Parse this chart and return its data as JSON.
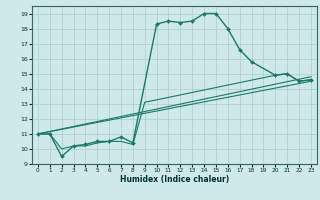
{
  "xlabel": "Humidex (Indice chaleur)",
  "bg_color": "#cfe8e8",
  "grid_color": "#aacccc",
  "line_color": "#1a7a6a",
  "xlim": [
    -0.5,
    23.5
  ],
  "ylim": [
    9,
    19.5
  ],
  "xticks": [
    0,
    1,
    2,
    3,
    4,
    5,
    6,
    7,
    8,
    9,
    10,
    11,
    12,
    13,
    14,
    15,
    16,
    17,
    18,
    19,
    20,
    21,
    22,
    23
  ],
  "yticks": [
    9,
    10,
    11,
    12,
    13,
    14,
    15,
    16,
    17,
    18,
    19
  ],
  "series": [
    {
      "x": [
        0,
        1,
        2,
        3,
        4,
        5,
        6,
        7,
        8,
        10,
        11,
        12,
        13,
        14,
        15,
        16,
        17,
        18,
        20,
        21,
        22,
        23
      ],
      "y": [
        11,
        11,
        9.5,
        10.2,
        10.3,
        10.5,
        10.5,
        10.8,
        10.4,
        18.3,
        18.5,
        18.4,
        18.5,
        19.0,
        19.0,
        18.0,
        16.6,
        15.8,
        14.9,
        15.0,
        14.5,
        14.6
      ],
      "marker": "D",
      "markersize": 2.0,
      "linewidth": 1.0
    },
    {
      "x": [
        0,
        1,
        2,
        3,
        4,
        5,
        6,
        7,
        8,
        9,
        20,
        21,
        22,
        23
      ],
      "y": [
        11,
        11,
        10.0,
        10.2,
        10.2,
        10.4,
        10.5,
        10.5,
        10.3,
        13.1,
        14.9,
        15.0,
        14.5,
        14.6
      ],
      "marker": null,
      "markersize": 0,
      "linewidth": 0.8
    },
    {
      "x": [
        0,
        23
      ],
      "y": [
        11,
        14.8
      ],
      "marker": null,
      "markersize": 0,
      "linewidth": 0.8
    },
    {
      "x": [
        0,
        23
      ],
      "y": [
        11,
        14.5
      ],
      "marker": null,
      "markersize": 0,
      "linewidth": 0.8
    }
  ]
}
